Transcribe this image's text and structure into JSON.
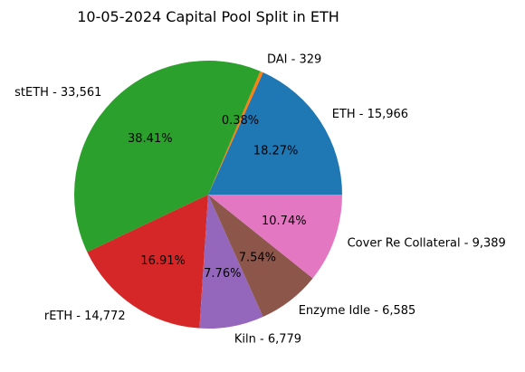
{
  "chart_data": {
    "type": "pie",
    "title": "10-05-2024 Capital Pool Split in ETH",
    "slices": [
      {
        "label": "ETH - 15,966",
        "value": 15966,
        "percent": "18.27%",
        "color": "#1f77b4"
      },
      {
        "label": "DAI - 329",
        "value": 329,
        "percent": "0.38%",
        "color": "#ff7f0e"
      },
      {
        "label": "stETH - 33,561",
        "value": 33561,
        "percent": "38.41%",
        "color": "#2ca02c"
      },
      {
        "label": "rETH - 14,772",
        "value": 14772,
        "percent": "16.91%",
        "color": "#d62728"
      },
      {
        "label": "Kiln - 6,779",
        "value": 6779,
        "percent": "7.76%",
        "color": "#9467bd"
      },
      {
        "label": "Enzyme Idle - 6,585",
        "value": 6585,
        "percent": "7.54%",
        "color": "#8c564b"
      },
      {
        "label": "Cover Re Collateral - 9,389",
        "value": 9389,
        "percent": "10.74%",
        "color": "#e377c2"
      }
    ],
    "start_angle": 0,
    "direction": "counterclockwise",
    "legend": "none"
  }
}
